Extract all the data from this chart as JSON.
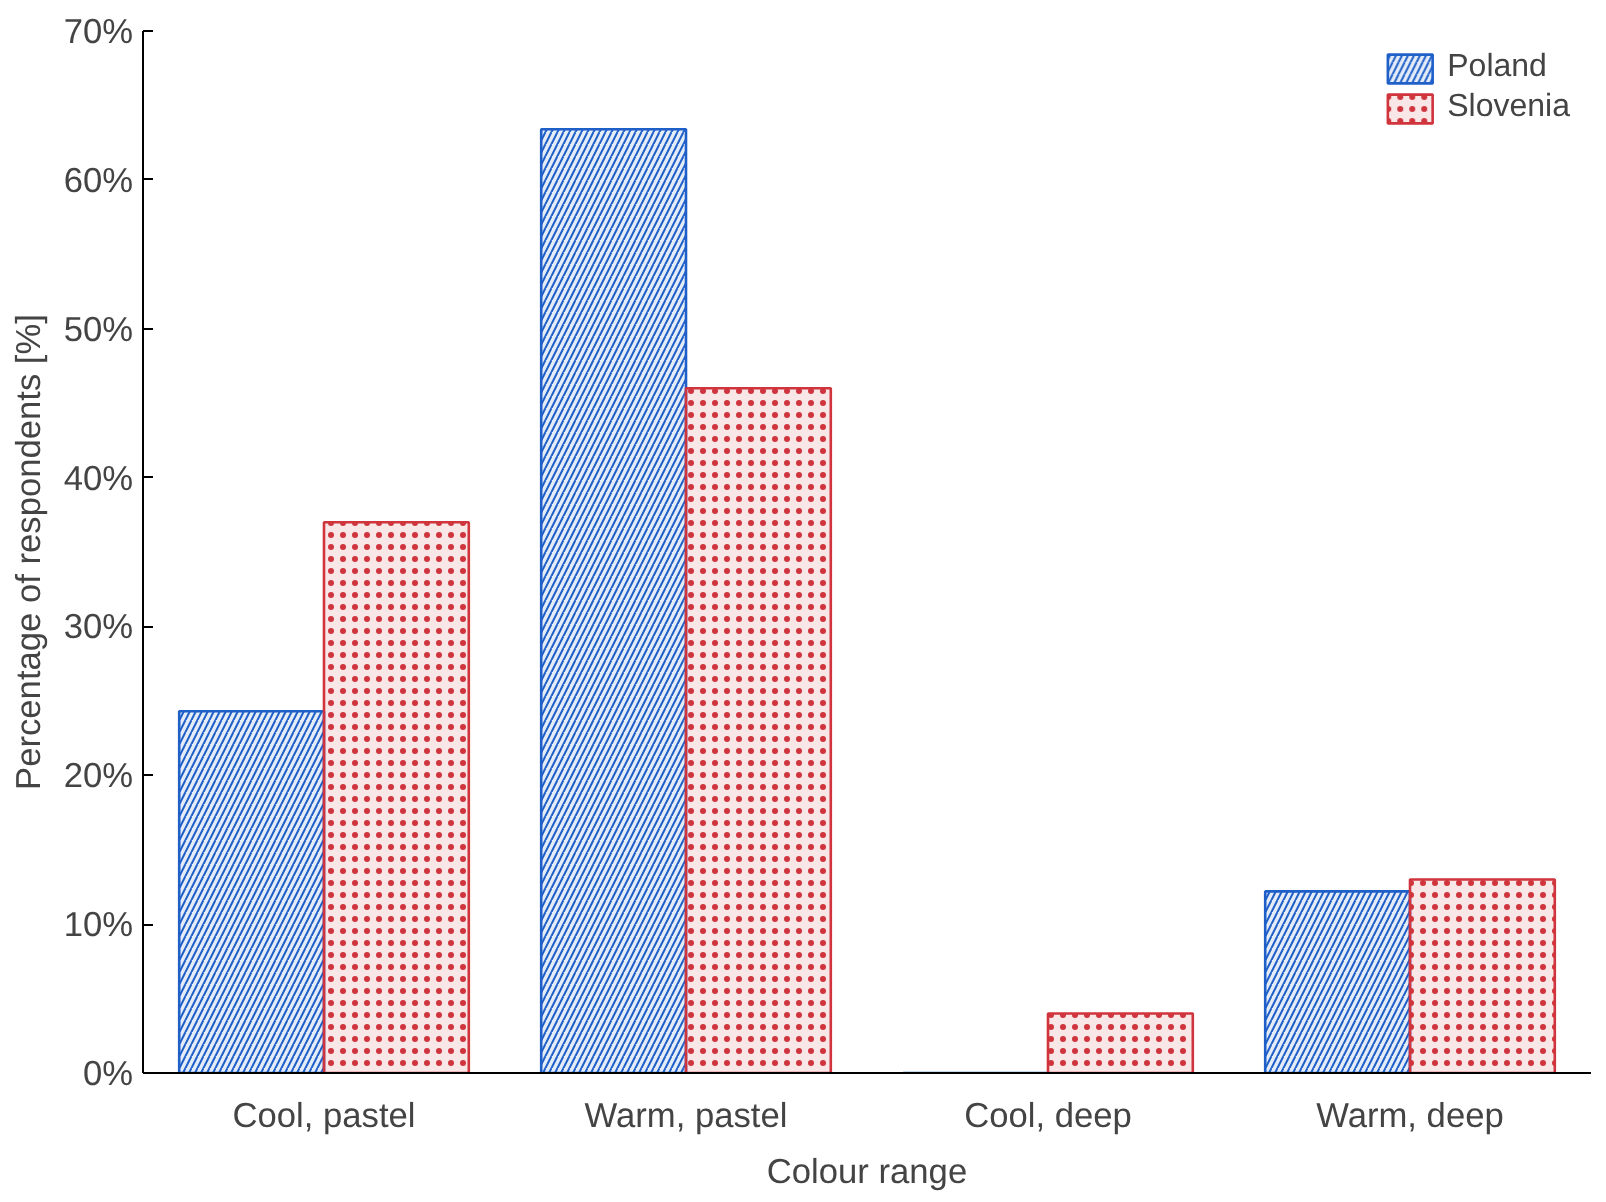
{
  "chart_data": {
    "type": "bar",
    "xlabel": "Colour range",
    "ylabel": "Percentage of respondents [%]",
    "categories": [
      "Cool, pastel",
      "Warm, pastel",
      "Cool, deep",
      "Warm, deep"
    ],
    "series": [
      {
        "name": "Poland",
        "color": "#1f5fc8",
        "values": [
          24.3,
          63.4,
          0,
          12.2
        ]
      },
      {
        "name": "Slovenia",
        "color": "#d0343c",
        "values": [
          37,
          46,
          4,
          13
        ]
      }
    ],
    "ylim": [
      0,
      70
    ],
    "yticks": [
      {
        "value": 0,
        "label": "0%"
      },
      {
        "value": 10,
        "label": "10%"
      },
      {
        "value": 20,
        "label": "20%"
      },
      {
        "value": 30,
        "label": "30%"
      },
      {
        "value": 40,
        "label": "40%"
      },
      {
        "value": 50,
        "label": "50%"
      },
      {
        "value": 60,
        "label": "60%"
      },
      {
        "value": 70,
        "label": "70%"
      }
    ],
    "grid": false,
    "legend": "top right"
  }
}
